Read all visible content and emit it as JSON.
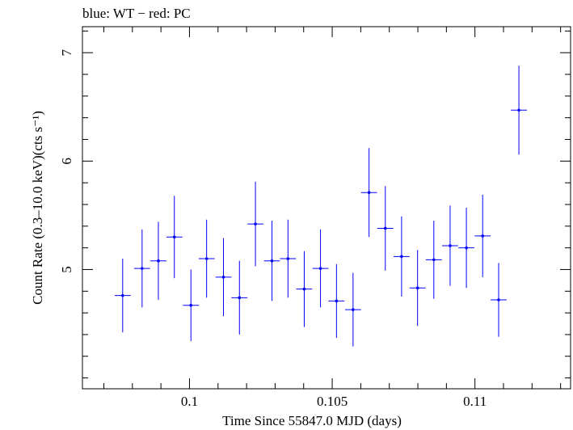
{
  "chart_data": {
    "type": "scatter",
    "title": "blue: WT − red: PC",
    "xlabel": "Time Since 55847.0 MJD (days)",
    "ylabel": "Count Rate (0.3–10.0 keV)(cts s⁻¹)",
    "xlim": [
      0.09625,
      0.11335
    ],
    "ylim": [
      3.9,
      7.24
    ],
    "x_ticks": [
      {
        "value": 0.1,
        "label": "0.1"
      },
      {
        "value": 0.105,
        "label": "0.105"
      },
      {
        "value": 0.11,
        "label": "0.11"
      }
    ],
    "y_ticks": [
      {
        "value": 5,
        "label": "5"
      },
      {
        "value": 6,
        "label": "6"
      },
      {
        "value": 7,
        "label": "7"
      }
    ],
    "grid": false,
    "series": [
      {
        "color": "#0000ff",
        "points": [
          {
            "x": 0.09766,
            "xerr": 0.00028,
            "y": 4.76,
            "yerr": 0.34
          },
          {
            "x": 0.09834,
            "xerr": 0.00028,
            "y": 5.01,
            "yerr": 0.36
          },
          {
            "x": 0.09891,
            "xerr": 0.00028,
            "y": 5.08,
            "yerr": 0.36
          },
          {
            "x": 0.09947,
            "xerr": 0.00028,
            "y": 5.3,
            "yerr": 0.38
          },
          {
            "x": 0.10005,
            "xerr": 0.00028,
            "y": 4.67,
            "yerr": 0.33
          },
          {
            "x": 0.1006,
            "xerr": 0.00028,
            "y": 5.1,
            "yerr": 0.36
          },
          {
            "x": 0.10119,
            "xerr": 0.00028,
            "y": 4.93,
            "yerr": 0.36
          },
          {
            "x": 0.10175,
            "xerr": 0.00028,
            "y": 4.74,
            "yerr": 0.34
          },
          {
            "x": 0.10231,
            "xerr": 0.00028,
            "y": 5.42,
            "yerr": 0.39
          },
          {
            "x": 0.10289,
            "xerr": 0.00028,
            "y": 5.08,
            "yerr": 0.37
          },
          {
            "x": 0.10345,
            "xerr": 0.00028,
            "y": 5.1,
            "yerr": 0.36
          },
          {
            "x": 0.10402,
            "xerr": 0.00028,
            "y": 4.82,
            "yerr": 0.35
          },
          {
            "x": 0.10459,
            "xerr": 0.00028,
            "y": 5.01,
            "yerr": 0.36
          },
          {
            "x": 0.10515,
            "xerr": 0.00028,
            "y": 4.71,
            "yerr": 0.34
          },
          {
            "x": 0.10573,
            "xerr": 0.00028,
            "y": 4.63,
            "yerr": 0.34
          },
          {
            "x": 0.10629,
            "xerr": 0.00028,
            "y": 5.71,
            "yerr": 0.41
          },
          {
            "x": 0.10686,
            "xerr": 0.00028,
            "y": 5.38,
            "yerr": 0.39
          },
          {
            "x": 0.10743,
            "xerr": 0.00028,
            "y": 5.12,
            "yerr": 0.37
          },
          {
            "x": 0.10799,
            "xerr": 0.00028,
            "y": 4.83,
            "yerr": 0.35
          },
          {
            "x": 0.10856,
            "xerr": 0.00028,
            "y": 5.09,
            "yerr": 0.36
          },
          {
            "x": 0.10913,
            "xerr": 0.00028,
            "y": 5.22,
            "yerr": 0.37
          },
          {
            "x": 0.1097,
            "xerr": 0.00028,
            "y": 5.2,
            "yerr": 0.37
          },
          {
            "x": 0.11027,
            "xerr": 0.00028,
            "y": 5.31,
            "yerr": 0.38
          },
          {
            "x": 0.11083,
            "xerr": 0.00028,
            "y": 4.72,
            "yerr": 0.34
          },
          {
            "x": 0.11154,
            "xerr": 0.00028,
            "y": 6.47,
            "yerr": 0.41
          }
        ]
      }
    ]
  }
}
